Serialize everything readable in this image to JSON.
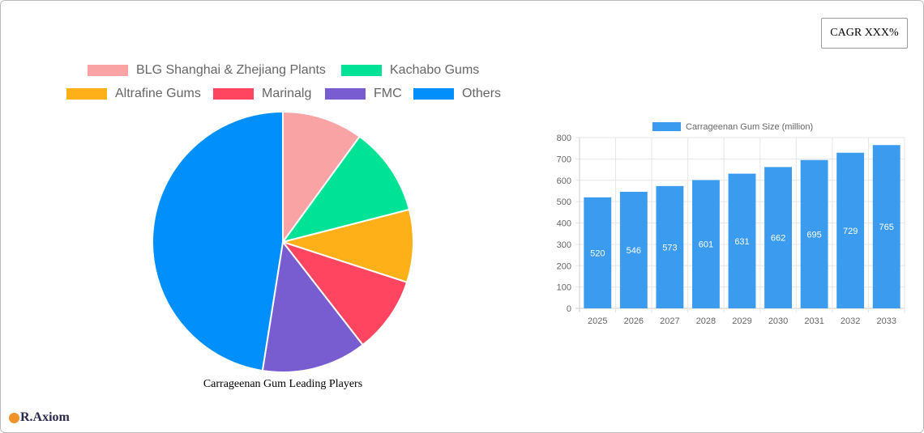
{
  "cagr_label": "CAGR XXX%",
  "logo_text": "R.Axiom",
  "chart_data": [
    {
      "type": "pie",
      "title": "Carrageenan Gum Leading Players",
      "legend_position": "top",
      "labels": [
        "BLG Shanghai & Zhejiang Plants",
        "Kachabo Gums",
        "Altrafine Gums",
        "Marinalg",
        "FMC",
        "Others"
      ],
      "values": [
        10,
        11,
        9,
        9.5,
        13,
        47.5
      ],
      "colors": [
        "#f9a3a4",
        "#00e396",
        "#feb019",
        "#ff4560",
        "#775dd0",
        "#008ffb"
      ]
    },
    {
      "type": "bar",
      "categories": [
        "2025",
        "2026",
        "2027",
        "2028",
        "2029",
        "2030",
        "2031",
        "2032",
        "2033"
      ],
      "series": [
        {
          "name": "Carrageenan Gum Size (million)",
          "values": [
            520,
            546,
            573,
            601,
            631,
            662,
            695,
            729,
            765
          ],
          "color": "#3a9bef"
        }
      ],
      "ylim": [
        0,
        800
      ],
      "yticks": [
        0,
        100,
        200,
        300,
        400,
        500,
        600,
        700,
        800
      ],
      "grid": true,
      "legend_position": "top",
      "data_labels": true
    }
  ]
}
